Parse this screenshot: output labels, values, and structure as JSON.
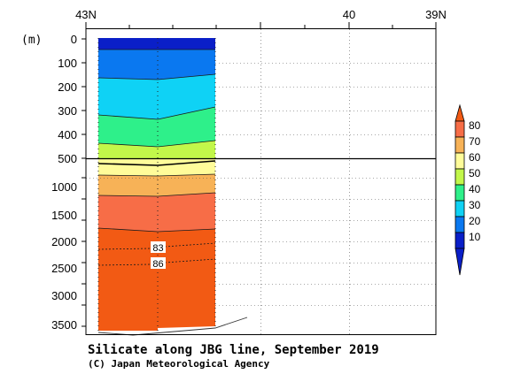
{
  "chart_data": {
    "type": "contour",
    "title": "Silicate along JBG line, September 2019",
    "credit": "(C) Japan Meteorological Agency",
    "y_unit": "(m)",
    "x_ticks": [
      "43N",
      "40",
      "39N"
    ],
    "y_ticks_upper": [
      0,
      100,
      200,
      300,
      400,
      500
    ],
    "y_ticks_lower": [
      1000,
      1500,
      2000,
      2500,
      3000,
      3500
    ],
    "colorbar": {
      "levels": [
        10,
        20,
        30,
        40,
        50,
        60,
        70,
        80
      ],
      "colors": [
        "#0a1fc8",
        "#0a78f0",
        "#0fd2f5",
        "#2ef08a",
        "#c2f74a",
        "#fffc9a",
        "#f7b257",
        "#f76d47",
        "#f25a14"
      ]
    },
    "grid": "dotted",
    "contour_labels": [
      {
        "value": "83",
        "depth": 2150
      },
      {
        "value": "86",
        "depth": 2400
      }
    ]
  }
}
